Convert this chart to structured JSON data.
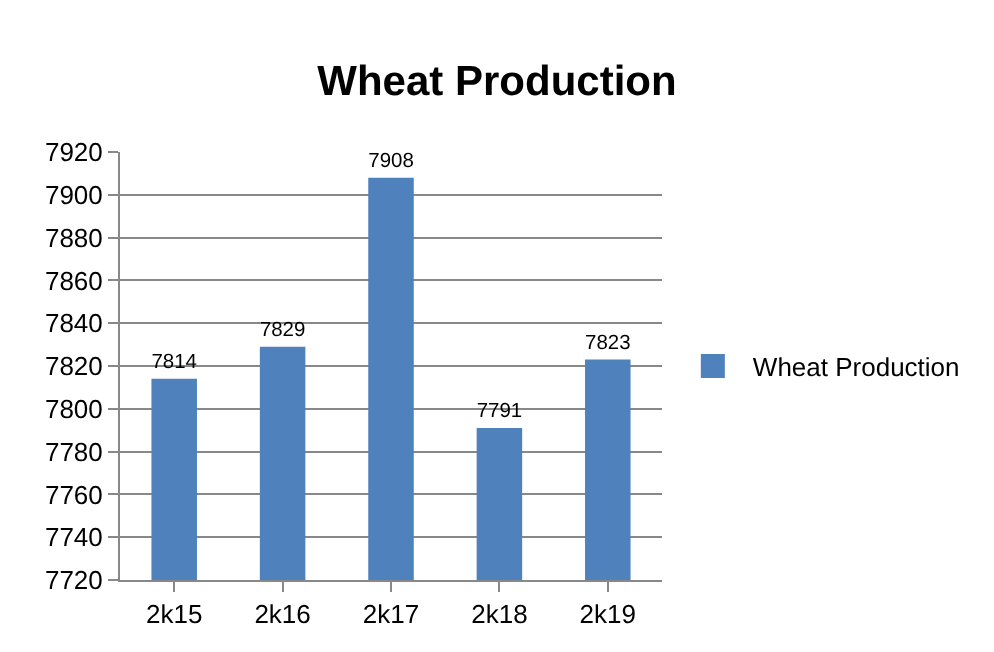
{
  "chart_data": {
    "type": "bar",
    "title": "Wheat Production",
    "categories": [
      "2k15",
      "2k16",
      "2k17",
      "2k18",
      "2k19"
    ],
    "series": [
      {
        "name": "Wheat Production",
        "color": "#4f81bd",
        "values": [
          7814,
          7829,
          7908,
          7791,
          7823
        ]
      }
    ],
    "ylim": [
      7720,
      7920
    ],
    "yticks": [
      7720,
      7740,
      7760,
      7780,
      7800,
      7820,
      7840,
      7860,
      7880,
      7900,
      7920
    ],
    "grid": "y",
    "legend": "right",
    "data_labels": true
  }
}
